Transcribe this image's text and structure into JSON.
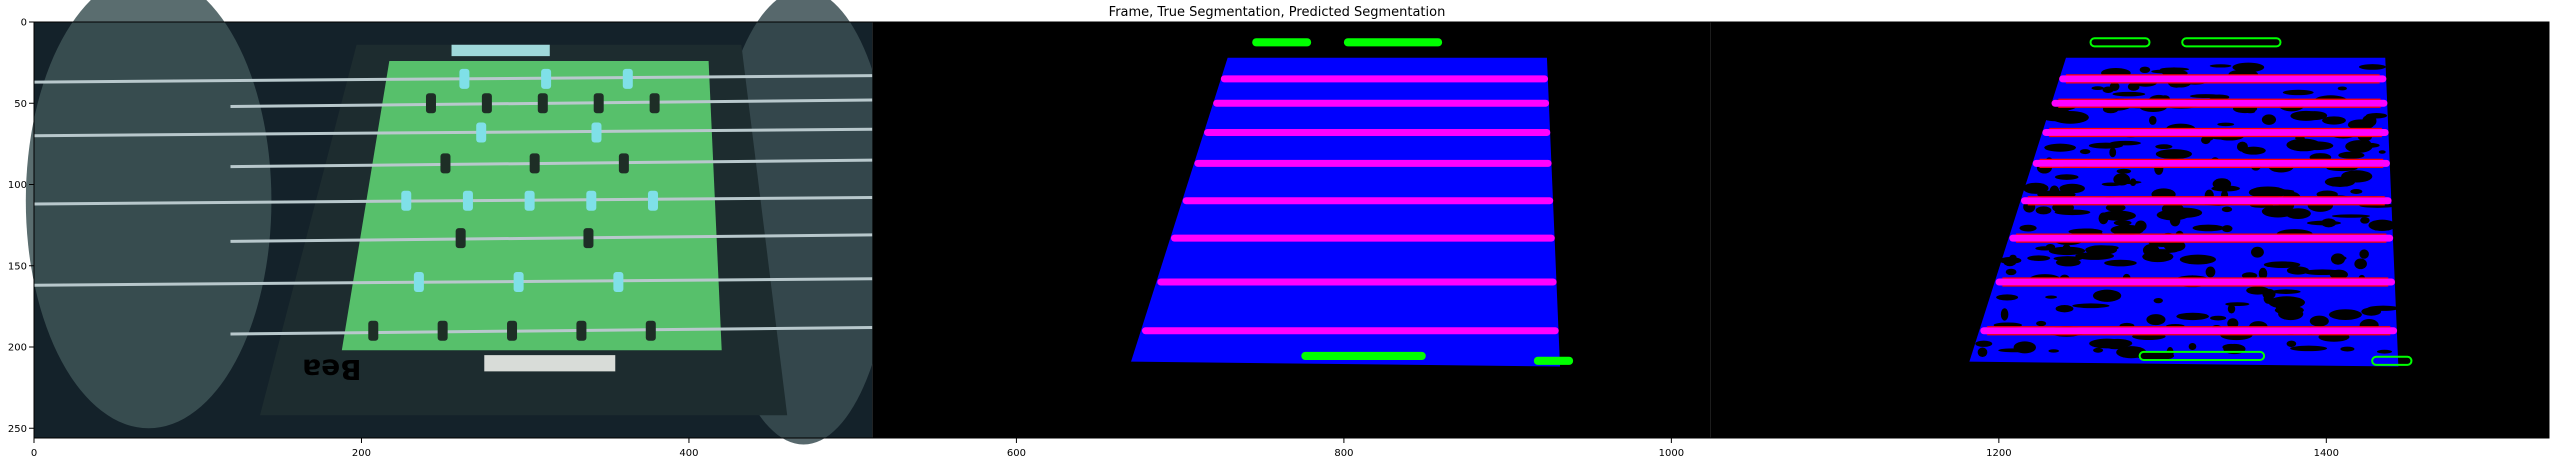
{
  "chart_data": {
    "type": "image",
    "title": "Frame, True Segmentation, Predicted Segmentation",
    "xlim": [
      0,
      1536
    ],
    "ylim": [
      256,
      0
    ],
    "xticks": [
      0,
      200,
      400,
      600,
      800,
      1000,
      1200,
      1400
    ],
    "yticks": [
      0,
      50,
      100,
      150,
      200,
      250
    ],
    "grid": false,
    "legend": "none",
    "panels": [
      {
        "name": "Frame",
        "x_range": [
          0,
          512
        ]
      },
      {
        "name": "True Segmentation",
        "x_range": [
          512,
          1024
        ]
      },
      {
        "name": "Predicted Segmentation",
        "x_range": [
          1024,
          1536
        ]
      }
    ],
    "segmentation": {
      "table_polygon_y": [
        22,
        212
      ],
      "table_polygon_x_top": [
        217,
        412
      ],
      "table_polygon_x_bottom": [
        158,
        420
      ],
      "rod_rows_y": [
        35,
        50,
        68,
        87,
        110,
        133,
        160,
        190
      ],
      "colors": {
        "background": "#000000",
        "table": "#0000ff",
        "rods": "#ff00ff",
        "goals": "#00ff00",
        "edges": "#ff0000"
      }
    }
  }
}
